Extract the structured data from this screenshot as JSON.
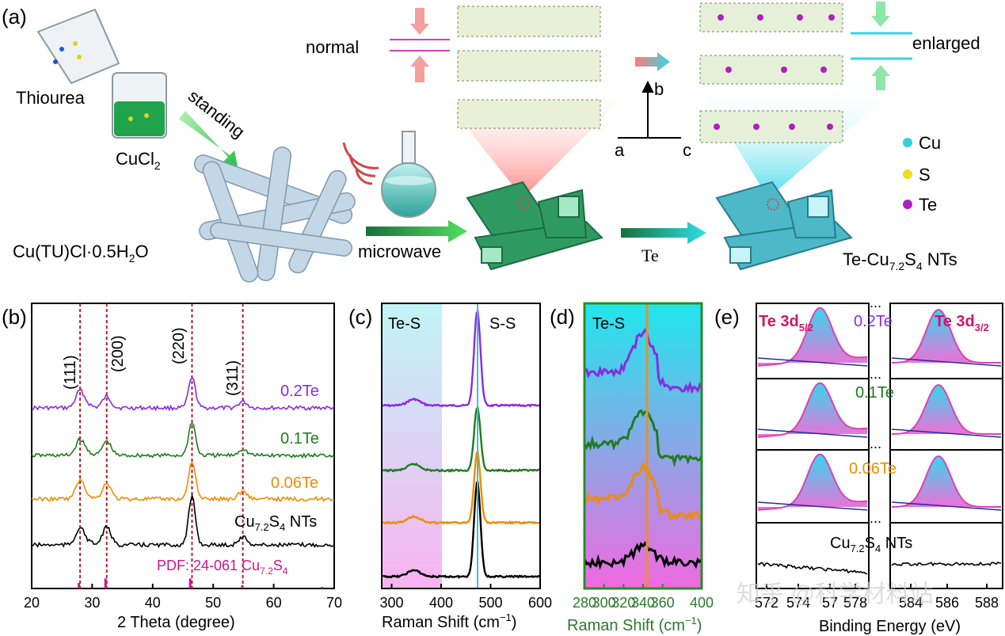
{
  "panel_a": {
    "label": "(a)",
    "thiourea": "Thiourea",
    "cucl2": "CuCl",
    "cucl2_sub": "2",
    "standing": "standing",
    "precursor_prefix": "Cu(TU)Cl·0.5H",
    "precursor_sub": "2",
    "precursor_suffix": "O",
    "microwave": "microwave",
    "normal": "normal",
    "enlarged": "enlarged",
    "te_arrow": "Te",
    "axis_a": "a",
    "axis_b": "b",
    "axis_c": "c",
    "legend": [
      {
        "label": "Cu",
        "color": "#35d0dc"
      },
      {
        "label": "S",
        "color": "#e8e020"
      },
      {
        "label": "Te",
        "color": "#b020c0"
      }
    ],
    "product_prefix": "Te-Cu",
    "product_sub1": "7.2",
    "product_mid": "S",
    "product_sub2": "4",
    "product_suffix": " NTs"
  },
  "chart_data": [
    {
      "type": "line",
      "panel": "(b)",
      "title": "",
      "xlabel": "2 Theta (degree)",
      "ylabel": "",
      "xlim": [
        20,
        70
      ],
      "xticks": [
        "20",
        "30",
        "40",
        "50",
        "60",
        "70"
      ],
      "peak_labels": [
        "(111)",
        "(200)",
        "(220)",
        "(311)"
      ],
      "peak_positions": [
        28.0,
        32.4,
        46.5,
        54.9
      ],
      "series": [
        {
          "name": "0.2Te",
          "color": "#8a2be2"
        },
        {
          "name": "0.1Te",
          "color": "#1e7d1e"
        },
        {
          "name": "0.06Te",
          "color": "#f08c00"
        },
        {
          "name": "Cu7.2S4 NTs",
          "color": "#000000"
        }
      ],
      "series_label_cu_prefix": "Cu",
      "series_label_cu_sub1": "7.2",
      "series_label_cu_mid": "S",
      "series_label_cu_sub2": "4",
      "series_label_cu_suffix": " NTs",
      "pdf_prefix": "PDF: 24-061 Cu",
      "pdf_sub1": "7.2",
      "pdf_mid": "S",
      "pdf_sub2": "4",
      "pdf_color": "#d0158a",
      "pdf_sticks": [
        {
          "x": 27.8,
          "h": 0.5
        },
        {
          "x": 32.2,
          "h": 0.9
        },
        {
          "x": 46.2,
          "h": 0.9
        },
        {
          "x": 54.8,
          "h": 0.3
        },
        {
          "x": 68.0,
          "h": 0.15
        }
      ]
    },
    {
      "type": "line",
      "panel": "(c)",
      "xlabel_prefix": "Raman Shift (cm",
      "xlabel_sup": "−1",
      "xlabel_suffix": ")",
      "xlim": [
        280,
        600
      ],
      "xticks": [
        "300",
        "400",
        "500",
        "600"
      ],
      "region_labels": [
        "Te-S",
        "S-S"
      ],
      "peak_line": 473,
      "series": [
        "0.2Te",
        "0.1Te",
        "0.06Te",
        "Cu7.2S4 NTs"
      ]
    },
    {
      "type": "line",
      "panel": "(d)",
      "xlabel_prefix": "Raman Shift (cm",
      "xlabel_sup": "−1",
      "xlabel_suffix": ")",
      "xlim": [
        280,
        400
      ],
      "xticks": [
        "280",
        "300",
        "320",
        "340",
        "360",
        "400"
      ],
      "region_label": "Te-S",
      "peak_line": 342,
      "series": [
        "0.2Te",
        "0.1Te",
        "0.06Te",
        "Cu7.2S4 NTs"
      ]
    },
    {
      "type": "line",
      "panel": "(e)",
      "xlabel": "Binding Energy (eV)",
      "xticks": [
        "572",
        "574",
        "57",
        "578",
        "584",
        "586",
        "588"
      ],
      "peak_left_prefix": "Te 3d",
      "peak_left_sub": "5/2",
      "peak_right_prefix": "Te 3d",
      "peak_right_sub": "3/2",
      "series": [
        "0.2Te",
        "0.1Te",
        "0.06Te",
        "Cu7.2S4 NTs"
      ],
      "break_mark": "..."
    }
  ],
  "panel_labels": {
    "b": "(b)",
    "c": "(c)",
    "d": "(d)",
    "e": "(e)"
  },
  "watermark": "知乎 @科学材料站"
}
